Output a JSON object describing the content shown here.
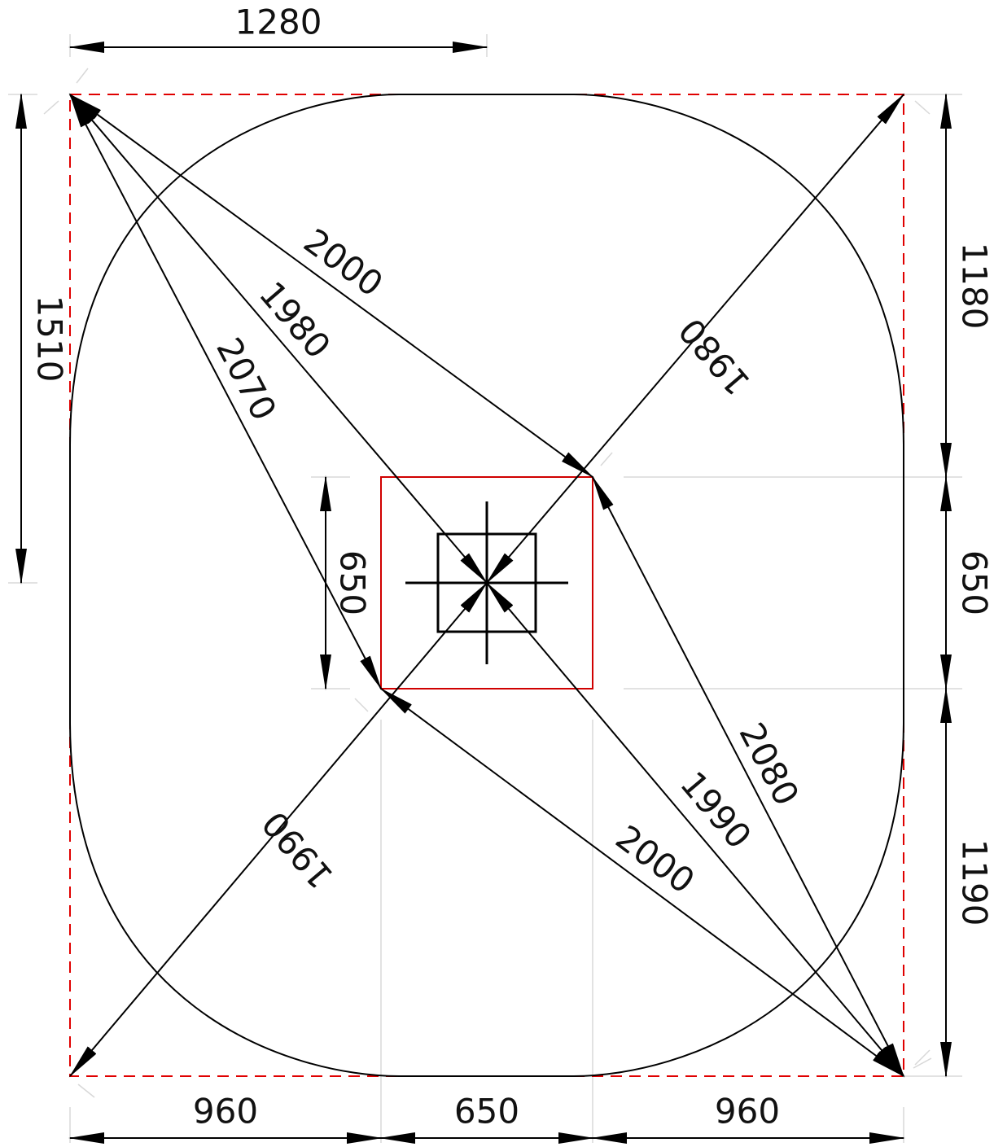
{
  "colors": {
    "line": "#000000",
    "boundary": "#e00000",
    "inner_square": "#d00000",
    "guide": "#d8d8d8"
  },
  "dimensions": {
    "top_width": "1280",
    "left_height": "1510",
    "right_top": "1180",
    "right_mid": "650",
    "right_bottom": "1190",
    "inner_height": "650",
    "bottom_left": "960",
    "bottom_mid": "650",
    "bottom_right": "960"
  },
  "diagonals": {
    "tl_to_square_tr": "2000",
    "tl_to_center": "1980",
    "tl_to_square_bl": "2070",
    "tr_to_center": "1980",
    "br_to_square_tr": "2080",
    "br_to_center": "1990",
    "br_to_square_bl": "2000",
    "bl_to_center": "1990"
  }
}
